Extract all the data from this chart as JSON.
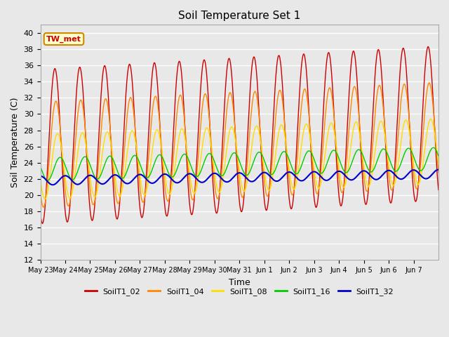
{
  "title": "Soil Temperature Set 1",
  "xlabel": "Time",
  "ylabel": "Soil Temperature (C)",
  "ylim": [
    12,
    41
  ],
  "yticks": [
    12,
    14,
    16,
    18,
    20,
    22,
    24,
    26,
    28,
    30,
    32,
    34,
    36,
    38,
    40
  ],
  "annotation": "TW_met",
  "series": {
    "SoilT1_02": {
      "color": "#cc0000",
      "lw": 1.0,
      "amplitude": 9.5,
      "mean": 26.0,
      "phase_hour": 14.0,
      "mean_trend": 0.18
    },
    "SoilT1_04": {
      "color": "#ff8800",
      "lw": 1.0,
      "amplitude": 6.5,
      "mean": 25.0,
      "phase_hour": 15.0,
      "mean_trend": 0.15
    },
    "SoilT1_08": {
      "color": "#ffdd00",
      "lw": 1.0,
      "amplitude": 4.0,
      "mean": 23.5,
      "phase_hour": 16.5,
      "mean_trend": 0.12
    },
    "SoilT1_16": {
      "color": "#00cc00",
      "lw": 1.0,
      "amplitude": 1.4,
      "mean": 23.2,
      "phase_hour": 19.0,
      "mean_trend": 0.08
    },
    "SoilT1_32": {
      "color": "#0000cc",
      "lw": 1.5,
      "amplitude": 0.55,
      "mean": 21.8,
      "phase_hour": 0.0,
      "mean_trend": 0.05
    }
  },
  "legend_order": [
    "SoilT1_02",
    "SoilT1_04",
    "SoilT1_08",
    "SoilT1_16",
    "SoilT1_32"
  ],
  "bg_color": "#e8e8e8",
  "plot_bg": "#e8e8e8",
  "grid_color": "#ffffff",
  "xtick_labels": [
    "May 23",
    "May 24",
    "May 25",
    "May 26",
    "May 27",
    "May 28",
    "May 29",
    "May 30",
    "May 31",
    "Jun 1",
    "Jun 2",
    "Jun 3",
    "Jun 4",
    "Jun 5",
    "Jun 6",
    "Jun 7"
  ],
  "n_days": 16,
  "samples_per_day": 96
}
